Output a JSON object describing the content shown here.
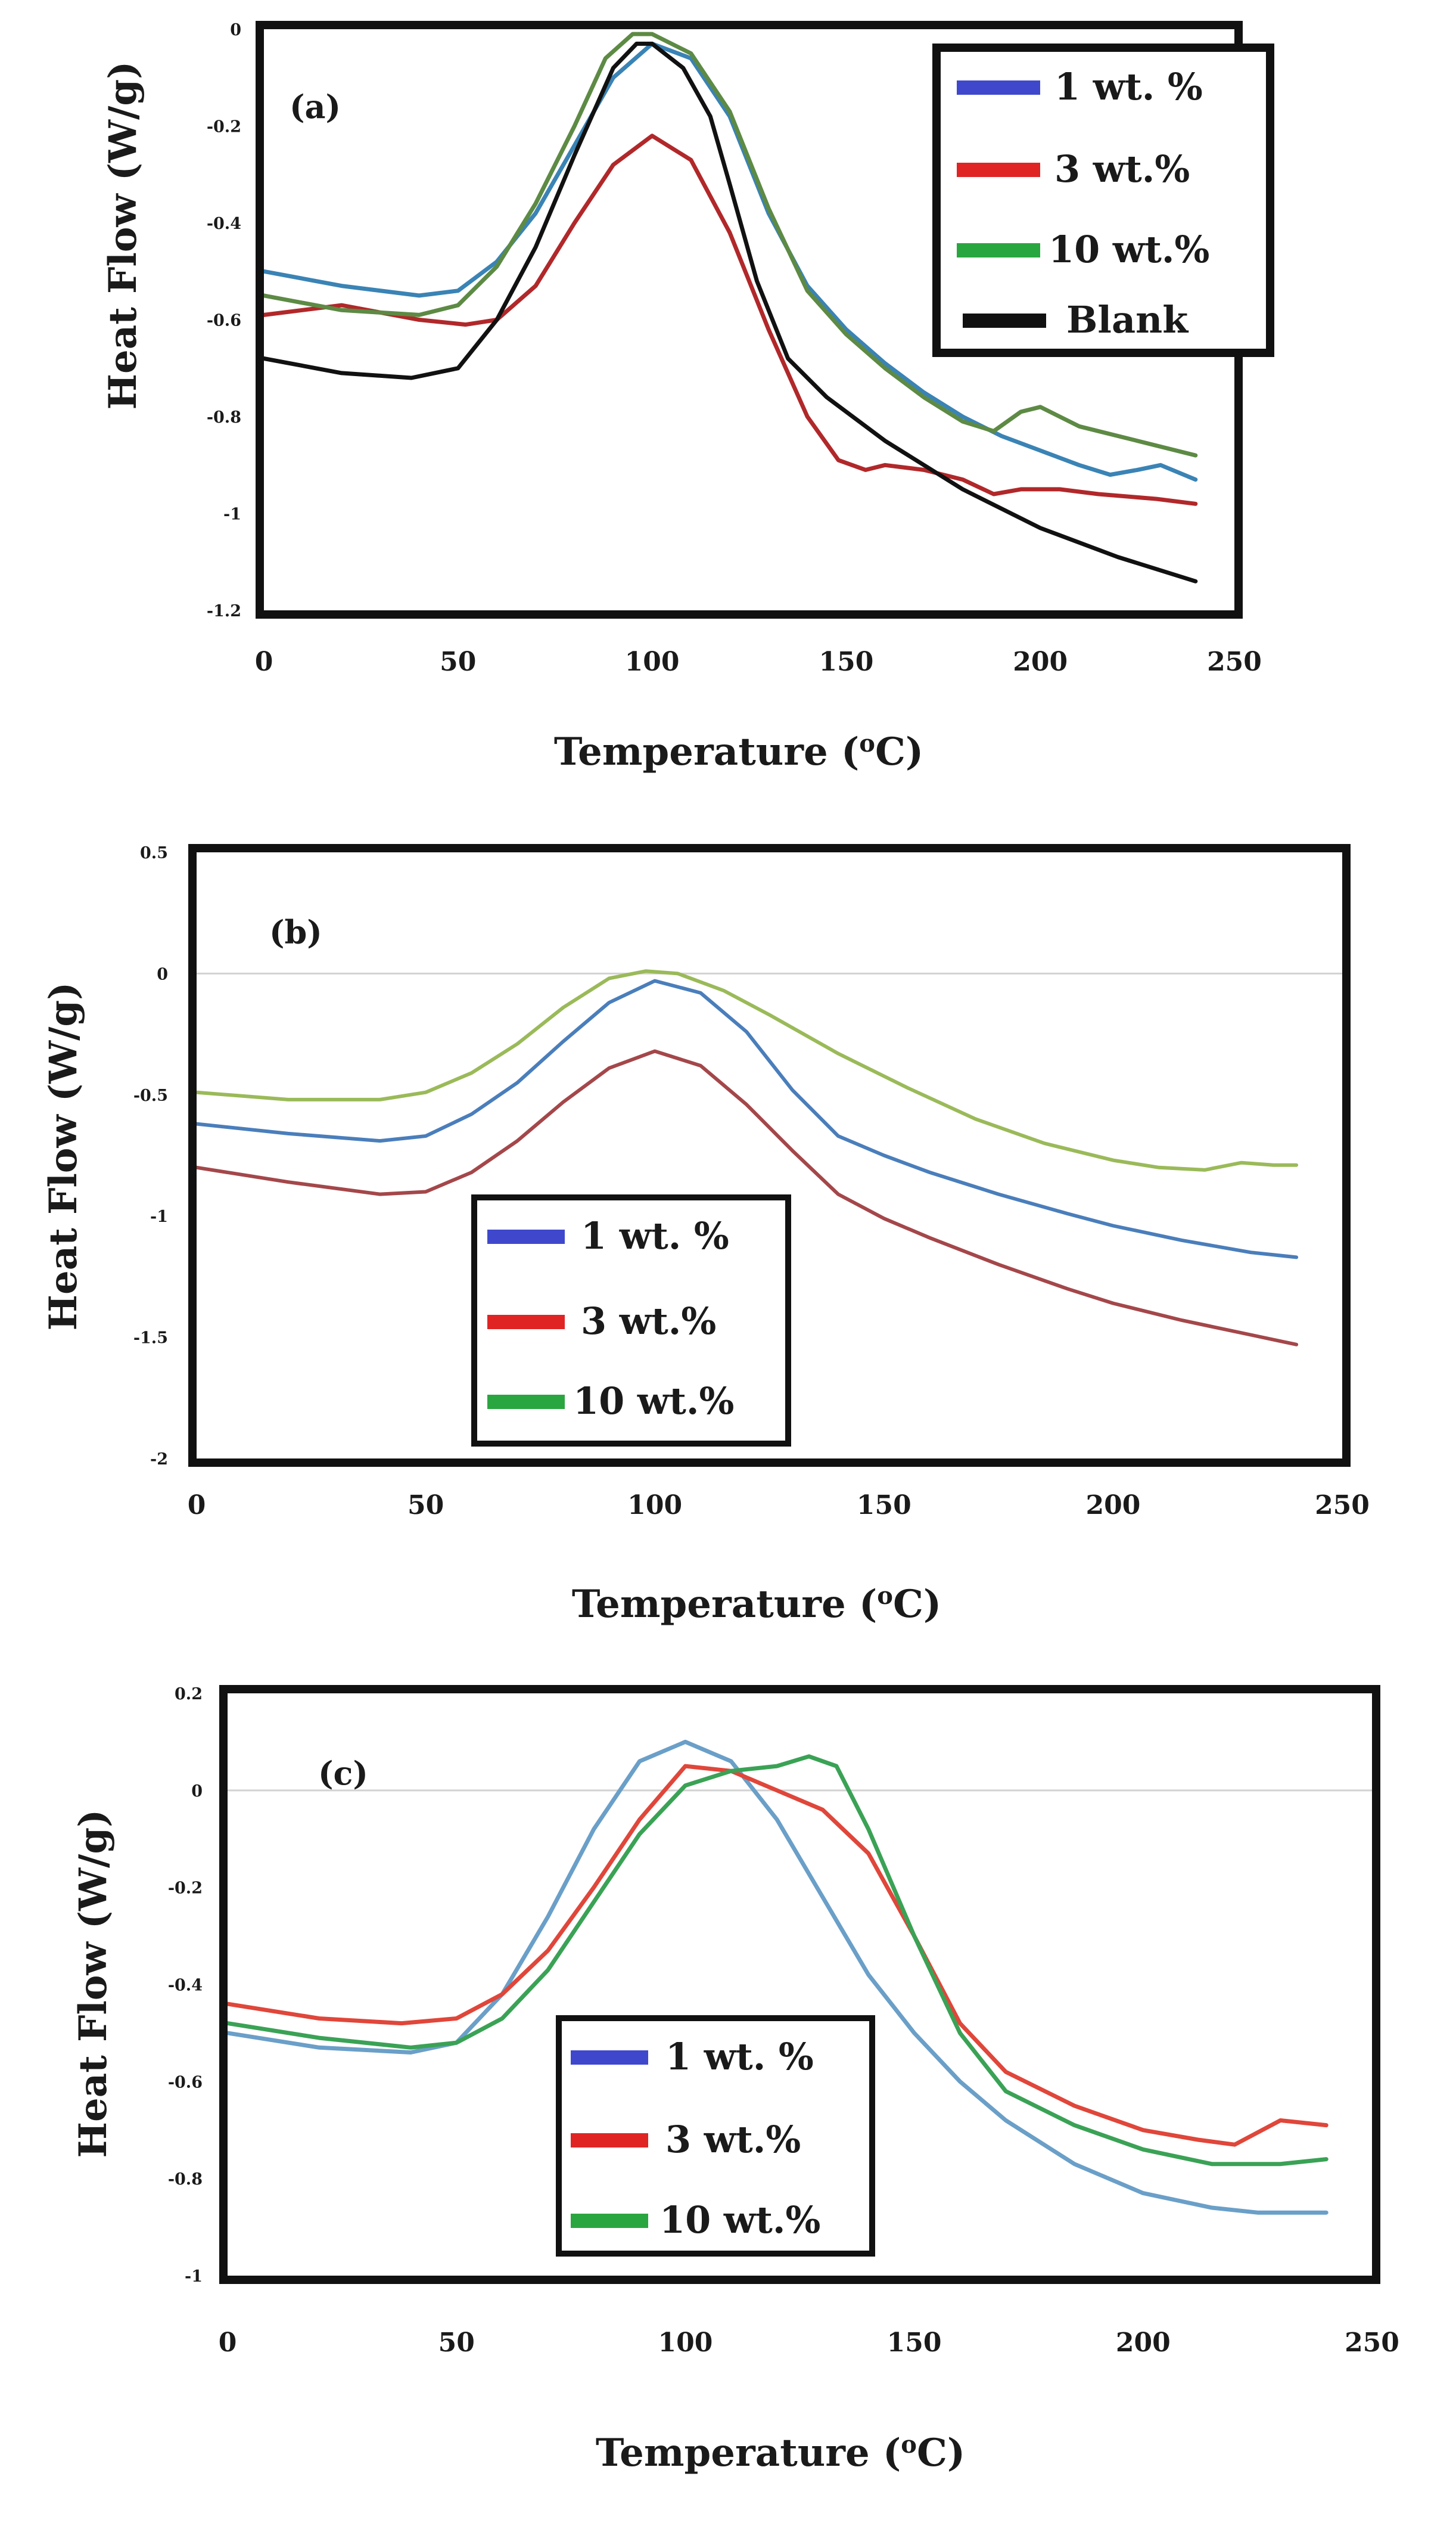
{
  "figure": {
    "panels": [
      {
        "id": "a",
        "label": "(a)",
        "xlabel": "Temperature (",
        "xlabel_sup": "o",
        "xlabel_suffix": "C)",
        "ylabel": "Heat Flow (W/g)",
        "legend_labels": [
          "1 wt. %",
          "3 wt.%",
          "10 wt.%",
          "Blank"
        ]
      },
      {
        "id": "b",
        "label": "(b)",
        "xlabel": "Temperature (",
        "xlabel_sup": "o",
        "xlabel_suffix": "C)",
        "ylabel": "Heat Flow (W/g)",
        "legend_labels": [
          "1 wt. %",
          "3 wt.%",
          "10 wt.%"
        ]
      },
      {
        "id": "c",
        "label": "(c)",
        "xlabel": "Temperature (",
        "xlabel_sup": "o",
        "xlabel_suffix": "C)",
        "ylabel": "Heat Flow (W/g)",
        "legend_labels": [
          "1 wt. %",
          "3 wt.%",
          "10 wt.%"
        ]
      }
    ]
  },
  "chart_data": [
    {
      "type": "line",
      "title": "(a)",
      "xlabel": "Temperature (oC)",
      "ylabel": "Heat Flow (W/g)",
      "xlim": [
        0,
        250
      ],
      "ylim": [
        -1.2,
        0
      ],
      "xticks": [
        "0",
        "50",
        "100",
        "150",
        "200",
        "250"
      ],
      "yticks": [
        "0",
        "-0.2",
        "-0.4",
        "-0.6",
        "-0.8",
        "-1",
        "-1.2"
      ],
      "zero_line": false,
      "legend_position": "top-right",
      "series": [
        {
          "name": "1 wt. %",
          "legend_color": "#3f48cc",
          "line_color": "#3a83b5",
          "points": [
            [
              0,
              -0.5
            ],
            [
              20,
              -0.53
            ],
            [
              40,
              -0.55
            ],
            [
              50,
              -0.54
            ],
            [
              60,
              -0.48
            ],
            [
              70,
              -0.38
            ],
            [
              80,
              -0.24
            ],
            [
              90,
              -0.1
            ],
            [
              100,
              -0.03
            ],
            [
              110,
              -0.06
            ],
            [
              120,
              -0.18
            ],
            [
              130,
              -0.38
            ],
            [
              140,
              -0.53
            ],
            [
              150,
              -0.62
            ],
            [
              160,
              -0.69
            ],
            [
              170,
              -0.75
            ],
            [
              180,
              -0.8
            ],
            [
              190,
              -0.84
            ],
            [
              200,
              -0.87
            ],
            [
              210,
              -0.9
            ],
            [
              218,
              -0.92
            ],
            [
              225,
              -0.91
            ],
            [
              231,
              -0.9
            ],
            [
              240,
              -0.93
            ]
          ]
        },
        {
          "name": "3 wt.%",
          "legend_color": "#e02424",
          "line_color": "#b1282a",
          "points": [
            [
              0,
              -0.59
            ],
            [
              20,
              -0.57
            ],
            [
              40,
              -0.6
            ],
            [
              52,
              -0.61
            ],
            [
              60,
              -0.6
            ],
            [
              70,
              -0.53
            ],
            [
              80,
              -0.4
            ],
            [
              90,
              -0.28
            ],
            [
              100,
              -0.22
            ],
            [
              110,
              -0.27
            ],
            [
              120,
              -0.42
            ],
            [
              130,
              -0.62
            ],
            [
              140,
              -0.8
            ],
            [
              148,
              -0.89
            ],
            [
              155,
              -0.91
            ],
            [
              160,
              -0.9
            ],
            [
              170,
              -0.91
            ],
            [
              180,
              -0.93
            ],
            [
              188,
              -0.96
            ],
            [
              195,
              -0.95
            ],
            [
              205,
              -0.95
            ],
            [
              215,
              -0.96
            ],
            [
              230,
              -0.97
            ],
            [
              240,
              -0.98
            ]
          ]
        },
        {
          "name": "10 wt.%",
          "legend_color": "#2aa640",
          "line_color": "#5d8a44",
          "points": [
            [
              0,
              -0.55
            ],
            [
              20,
              -0.58
            ],
            [
              40,
              -0.59
            ],
            [
              50,
              -0.57
            ],
            [
              60,
              -0.49
            ],
            [
              70,
              -0.36
            ],
            [
              80,
              -0.2
            ],
            [
              88,
              -0.06
            ],
            [
              95,
              -0.01
            ],
            [
              100,
              -0.01
            ],
            [
              110,
              -0.05
            ],
            [
              120,
              -0.17
            ],
            [
              130,
              -0.37
            ],
            [
              140,
              -0.54
            ],
            [
              150,
              -0.63
            ],
            [
              160,
              -0.7
            ],
            [
              170,
              -0.76
            ],
            [
              180,
              -0.81
            ],
            [
              188,
              -0.83
            ],
            [
              195,
              -0.79
            ],
            [
              200,
              -0.78
            ],
            [
              210,
              -0.82
            ],
            [
              225,
              -0.85
            ],
            [
              240,
              -0.88
            ]
          ]
        },
        {
          "name": "Blank",
          "legend_color": "#111111",
          "line_color": "#111111",
          "points": [
            [
              0,
              -0.68
            ],
            [
              20,
              -0.71
            ],
            [
              38,
              -0.72
            ],
            [
              50,
              -0.7
            ],
            [
              60,
              -0.6
            ],
            [
              70,
              -0.45
            ],
            [
              80,
              -0.26
            ],
            [
              90,
              -0.08
            ],
            [
              96,
              -0.03
            ],
            [
              100,
              -0.03
            ],
            [
              108,
              -0.08
            ],
            [
              115,
              -0.18
            ],
            [
              120,
              -0.32
            ],
            [
              127,
              -0.52
            ],
            [
              135,
              -0.68
            ],
            [
              145,
              -0.76
            ],
            [
              160,
              -0.85
            ],
            [
              180,
              -0.95
            ],
            [
              200,
              -1.03
            ],
            [
              220,
              -1.09
            ],
            [
              240,
              -1.14
            ]
          ]
        }
      ]
    },
    {
      "type": "line",
      "title": "(b)",
      "xlabel": "Temperature (oC)",
      "ylabel": "Heat Flow (W/g)",
      "xlim": [
        0,
        250
      ],
      "ylim": [
        -2,
        0.5
      ],
      "xticks": [
        "0",
        "50",
        "100",
        "150",
        "200",
        "250"
      ],
      "yticks": [
        "0.5",
        "0",
        "-0.5",
        "-1",
        "-1.5",
        "-2"
      ],
      "zero_line": true,
      "legend_position": "center-left",
      "series": [
        {
          "name": "1 wt. %",
          "legend_color": "#3f48cc",
          "line_color": "#4a7ebb",
          "points": [
            [
              0,
              -0.62
            ],
            [
              20,
              -0.66
            ],
            [
              40,
              -0.69
            ],
            [
              50,
              -0.67
            ],
            [
              60,
              -0.58
            ],
            [
              70,
              -0.45
            ],
            [
              80,
              -0.28
            ],
            [
              90,
              -0.12
            ],
            [
              100,
              -0.03
            ],
            [
              110,
              -0.08
            ],
            [
              120,
              -0.24
            ],
            [
              130,
              -0.48
            ],
            [
              140,
              -0.67
            ],
            [
              150,
              -0.75
            ],
            [
              160,
              -0.82
            ],
            [
              175,
              -0.91
            ],
            [
              190,
              -0.99
            ],
            [
              200,
              -1.04
            ],
            [
              215,
              -1.1
            ],
            [
              230,
              -1.15
            ],
            [
              240,
              -1.17
            ]
          ]
        },
        {
          "name": "3 wt.%",
          "legend_color": "#e02424",
          "line_color": "#a4474a",
          "points": [
            [
              0,
              -0.8
            ],
            [
              20,
              -0.86
            ],
            [
              40,
              -0.91
            ],
            [
              50,
              -0.9
            ],
            [
              60,
              -0.82
            ],
            [
              70,
              -0.69
            ],
            [
              80,
              -0.53
            ],
            [
              90,
              -0.39
            ],
            [
              100,
              -0.32
            ],
            [
              110,
              -0.38
            ],
            [
              120,
              -0.54
            ],
            [
              130,
              -0.73
            ],
            [
              140,
              -0.91
            ],
            [
              150,
              -1.01
            ],
            [
              160,
              -1.09
            ],
            [
              175,
              -1.2
            ],
            [
              190,
              -1.3
            ],
            [
              200,
              -1.36
            ],
            [
              215,
              -1.43
            ],
            [
              230,
              -1.49
            ],
            [
              240,
              -1.53
            ]
          ]
        },
        {
          "name": "10 wt.%",
          "legend_color": "#2aa640",
          "line_color": "#9aba59",
          "points": [
            [
              0,
              -0.49
            ],
            [
              20,
              -0.52
            ],
            [
              40,
              -0.52
            ],
            [
              50,
              -0.49
            ],
            [
              60,
              -0.41
            ],
            [
              70,
              -0.29
            ],
            [
              80,
              -0.14
            ],
            [
              90,
              -0.02
            ],
            [
              98,
              0.01
            ],
            [
              105,
              0.0
            ],
            [
              115,
              -0.07
            ],
            [
              125,
              -0.17
            ],
            [
              140,
              -0.33
            ],
            [
              155,
              -0.47
            ],
            [
              170,
              -0.6
            ],
            [
              185,
              -0.7
            ],
            [
              200,
              -0.77
            ],
            [
              210,
              -0.8
            ],
            [
              220,
              -0.81
            ],
            [
              228,
              -0.78
            ],
            [
              235,
              -0.79
            ],
            [
              240,
              -0.79
            ]
          ]
        }
      ]
    },
    {
      "type": "line",
      "title": "(c)",
      "xlabel": "Temperature (oC)",
      "ylabel": "Heat Flow (W/g)",
      "xlim": [
        0,
        250
      ],
      "ylim": [
        -1,
        0.2
      ],
      "xticks": [
        "0",
        "50",
        "100",
        "150",
        "200",
        "250"
      ],
      "yticks": [
        "0.2",
        "0",
        "-0.2",
        "-0.4",
        "-0.6",
        "-0.8",
        "-1"
      ],
      "zero_line": true,
      "legend_position": "lower-center",
      "series": [
        {
          "name": "1 wt. %",
          "legend_color": "#3f48cc",
          "line_color": "#6a9fc8",
          "points": [
            [
              0,
              -0.5
            ],
            [
              20,
              -0.53
            ],
            [
              40,
              -0.54
            ],
            [
              50,
              -0.52
            ],
            [
              60,
              -0.42
            ],
            [
              70,
              -0.26
            ],
            [
              80,
              -0.08
            ],
            [
              90,
              0.06
            ],
            [
              100,
              0.1
            ],
            [
              110,
              0.06
            ],
            [
              120,
              -0.06
            ],
            [
              130,
              -0.22
            ],
            [
              140,
              -0.38
            ],
            [
              150,
              -0.5
            ],
            [
              160,
              -0.6
            ],
            [
              170,
              -0.68
            ],
            [
              185,
              -0.77
            ],
            [
              200,
              -0.83
            ],
            [
              215,
              -0.86
            ],
            [
              225,
              -0.87
            ],
            [
              240,
              -0.87
            ]
          ]
        },
        {
          "name": "3 wt.%",
          "legend_color": "#e02424",
          "line_color": "#e0463a",
          "points": [
            [
              0,
              -0.44
            ],
            [
              20,
              -0.47
            ],
            [
              38,
              -0.48
            ],
            [
              50,
              -0.47
            ],
            [
              60,
              -0.42
            ],
            [
              70,
              -0.33
            ],
            [
              80,
              -0.2
            ],
            [
              90,
              -0.06
            ],
            [
              100,
              0.05
            ],
            [
              110,
              0.04
            ],
            [
              120,
              0.0
            ],
            [
              130,
              -0.04
            ],
            [
              140,
              -0.13
            ],
            [
              150,
              -0.3
            ],
            [
              160,
              -0.48
            ],
            [
              170,
              -0.58
            ],
            [
              185,
              -0.65
            ],
            [
              200,
              -0.7
            ],
            [
              212,
              -0.72
            ],
            [
              220,
              -0.73
            ],
            [
              230,
              -0.68
            ],
            [
              240,
              -0.69
            ]
          ]
        },
        {
          "name": "10 wt.%",
          "legend_color": "#2aa640",
          "line_color": "#3aa255",
          "points": [
            [
              0,
              -0.48
            ],
            [
              20,
              -0.51
            ],
            [
              40,
              -0.53
            ],
            [
              50,
              -0.52
            ],
            [
              60,
              -0.47
            ],
            [
              70,
              -0.37
            ],
            [
              80,
              -0.23
            ],
            [
              90,
              -0.09
            ],
            [
              100,
              0.01
            ],
            [
              110,
              0.04
            ],
            [
              120,
              0.05
            ],
            [
              127,
              0.07
            ],
            [
              133,
              0.05
            ],
            [
              140,
              -0.08
            ],
            [
              150,
              -0.3
            ],
            [
              160,
              -0.5
            ],
            [
              170,
              -0.62
            ],
            [
              185,
              -0.69
            ],
            [
              200,
              -0.74
            ],
            [
              215,
              -0.77
            ],
            [
              230,
              -0.77
            ],
            [
              240,
              -0.76
            ]
          ]
        }
      ]
    }
  ]
}
